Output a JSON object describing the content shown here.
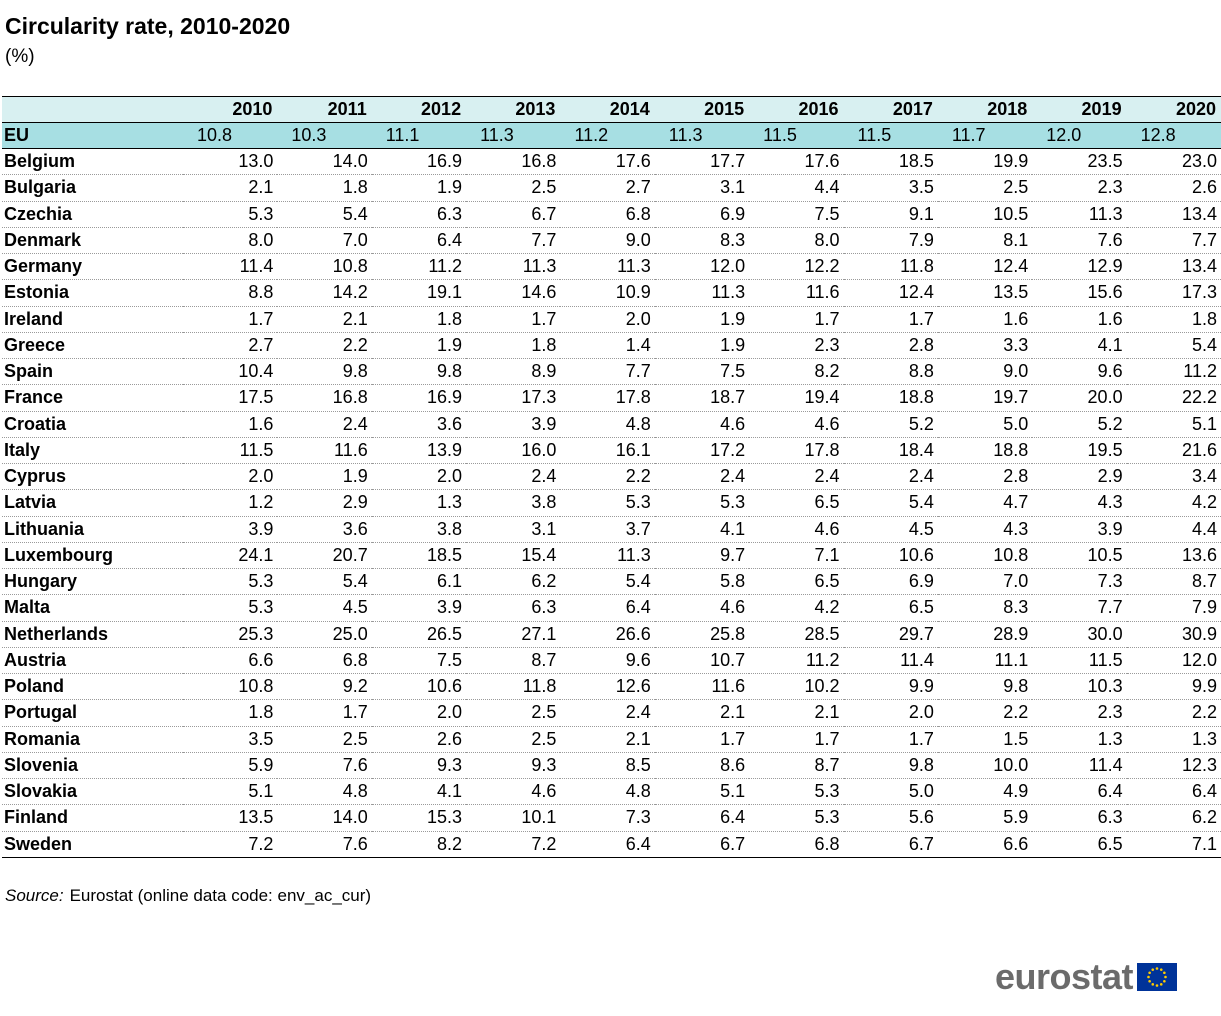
{
  "title": "Circularity rate, 2010-2020",
  "unit": "(%)",
  "table": {
    "years": [
      "2010",
      "2011",
      "2012",
      "2013",
      "2014",
      "2015",
      "2016",
      "2017",
      "2018",
      "2019",
      "2020"
    ],
    "eu": {
      "name": "EU",
      "values": [
        "10.8",
        "10.3",
        "11.1",
        "11.3",
        "11.2",
        "11.3",
        "11.5",
        "11.5",
        "11.7",
        "12.0",
        "12.8"
      ]
    },
    "rows": [
      {
        "name": "Belgium",
        "values": [
          "13.0",
          "14.0",
          "16.9",
          "16.8",
          "17.6",
          "17.7",
          "17.6",
          "18.5",
          "19.9",
          "23.5",
          "23.0"
        ]
      },
      {
        "name": "Bulgaria",
        "values": [
          "2.1",
          "1.8",
          "1.9",
          "2.5",
          "2.7",
          "3.1",
          "4.4",
          "3.5",
          "2.5",
          "2.3",
          "2.6"
        ]
      },
      {
        "name": "Czechia",
        "values": [
          "5.3",
          "5.4",
          "6.3",
          "6.7",
          "6.8",
          "6.9",
          "7.5",
          "9.1",
          "10.5",
          "11.3",
          "13.4"
        ]
      },
      {
        "name": "Denmark",
        "values": [
          "8.0",
          "7.0",
          "6.4",
          "7.7",
          "9.0",
          "8.3",
          "8.0",
          "7.9",
          "8.1",
          "7.6",
          "7.7"
        ]
      },
      {
        "name": "Germany",
        "values": [
          "11.4",
          "10.8",
          "11.2",
          "11.3",
          "11.3",
          "12.0",
          "12.2",
          "11.8",
          "12.4",
          "12.9",
          "13.4"
        ]
      },
      {
        "name": "Estonia",
        "values": [
          "8.8",
          "14.2",
          "19.1",
          "14.6",
          "10.9",
          "11.3",
          "11.6",
          "12.4",
          "13.5",
          "15.6",
          "17.3"
        ]
      },
      {
        "name": "Ireland",
        "values": [
          "1.7",
          "2.1",
          "1.8",
          "1.7",
          "2.0",
          "1.9",
          "1.7",
          "1.7",
          "1.6",
          "1.6",
          "1.8"
        ]
      },
      {
        "name": "Greece",
        "values": [
          "2.7",
          "2.2",
          "1.9",
          "1.8",
          "1.4",
          "1.9",
          "2.3",
          "2.8",
          "3.3",
          "4.1",
          "5.4"
        ]
      },
      {
        "name": "Spain",
        "values": [
          "10.4",
          "9.8",
          "9.8",
          "8.9",
          "7.7",
          "7.5",
          "8.2",
          "8.8",
          "9.0",
          "9.6",
          "11.2"
        ]
      },
      {
        "name": "France",
        "values": [
          "17.5",
          "16.8",
          "16.9",
          "17.3",
          "17.8",
          "18.7",
          "19.4",
          "18.8",
          "19.7",
          "20.0",
          "22.2"
        ]
      },
      {
        "name": "Croatia",
        "values": [
          "1.6",
          "2.4",
          "3.6",
          "3.9",
          "4.8",
          "4.6",
          "4.6",
          "5.2",
          "5.0",
          "5.2",
          "5.1"
        ]
      },
      {
        "name": "Italy",
        "values": [
          "11.5",
          "11.6",
          "13.9",
          "16.0",
          "16.1",
          "17.2",
          "17.8",
          "18.4",
          "18.8",
          "19.5",
          "21.6"
        ]
      },
      {
        "name": "Cyprus",
        "values": [
          "2.0",
          "1.9",
          "2.0",
          "2.4",
          "2.2",
          "2.4",
          "2.4",
          "2.4",
          "2.8",
          "2.9",
          "3.4"
        ]
      },
      {
        "name": "Latvia",
        "values": [
          "1.2",
          "2.9",
          "1.3",
          "3.8",
          "5.3",
          "5.3",
          "6.5",
          "5.4",
          "4.7",
          "4.3",
          "4.2"
        ]
      },
      {
        "name": "Lithuania",
        "values": [
          "3.9",
          "3.6",
          "3.8",
          "3.1",
          "3.7",
          "4.1",
          "4.6",
          "4.5",
          "4.3",
          "3.9",
          "4.4"
        ]
      },
      {
        "name": "Luxembourg",
        "values": [
          "24.1",
          "20.7",
          "18.5",
          "15.4",
          "11.3",
          "9.7",
          "7.1",
          "10.6",
          "10.8",
          "10.5",
          "13.6"
        ]
      },
      {
        "name": "Hungary",
        "values": [
          "5.3",
          "5.4",
          "6.1",
          "6.2",
          "5.4",
          "5.8",
          "6.5",
          "6.9",
          "7.0",
          "7.3",
          "8.7"
        ]
      },
      {
        "name": "Malta",
        "values": [
          "5.3",
          "4.5",
          "3.9",
          "6.3",
          "6.4",
          "4.6",
          "4.2",
          "6.5",
          "8.3",
          "7.7",
          "7.9"
        ]
      },
      {
        "name": "Netherlands",
        "values": [
          "25.3",
          "25.0",
          "26.5",
          "27.1",
          "26.6",
          "25.8",
          "28.5",
          "29.7",
          "28.9",
          "30.0",
          "30.9"
        ]
      },
      {
        "name": "Austria",
        "values": [
          "6.6",
          "6.8",
          "7.5",
          "8.7",
          "9.6",
          "10.7",
          "11.2",
          "11.4",
          "11.1",
          "11.5",
          "12.0"
        ]
      },
      {
        "name": "Poland",
        "values": [
          "10.8",
          "9.2",
          "10.6",
          "11.8",
          "12.6",
          "11.6",
          "10.2",
          "9.9",
          "9.8",
          "10.3",
          "9.9"
        ]
      },
      {
        "name": "Portugal",
        "values": [
          "1.8",
          "1.7",
          "2.0",
          "2.5",
          "2.4",
          "2.1",
          "2.1",
          "2.0",
          "2.2",
          "2.3",
          "2.2"
        ]
      },
      {
        "name": "Romania",
        "values": [
          "3.5",
          "2.5",
          "2.6",
          "2.5",
          "2.1",
          "1.7",
          "1.7",
          "1.7",
          "1.5",
          "1.3",
          "1.3"
        ]
      },
      {
        "name": "Slovenia",
        "values": [
          "5.9",
          "7.6",
          "9.3",
          "9.3",
          "8.5",
          "8.6",
          "8.7",
          "9.8",
          "10.0",
          "11.4",
          "12.3"
        ]
      },
      {
        "name": "Slovakia",
        "values": [
          "5.1",
          "4.8",
          "4.1",
          "4.6",
          "4.8",
          "5.1",
          "5.3",
          "5.0",
          "4.9",
          "6.4",
          "6.4"
        ]
      },
      {
        "name": "Finland",
        "values": [
          "13.5",
          "14.0",
          "15.3",
          "10.1",
          "7.3",
          "6.4",
          "5.3",
          "5.6",
          "5.9",
          "6.3",
          "6.2"
        ]
      },
      {
        "name": "Sweden",
        "values": [
          "7.2",
          "7.6",
          "8.2",
          "7.2",
          "6.4",
          "6.7",
          "6.8",
          "6.7",
          "6.6",
          "6.5",
          "7.1"
        ]
      }
    ]
  },
  "source": {
    "label": "Source:",
    "text": "Eurostat (online data code: env_ac_cur)"
  },
  "logo": {
    "text": "eurostat",
    "flag_icon": "eu-flag-icon",
    "flag_color": "#003399",
    "star_color": "#ffcc00"
  },
  "colors": {
    "header_bg": "#d8f0f1",
    "eu_row_bg": "#a7dfe3"
  }
}
